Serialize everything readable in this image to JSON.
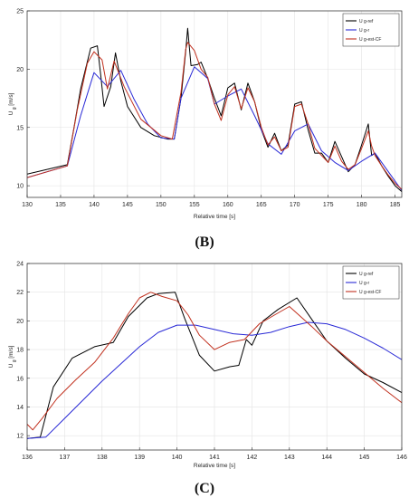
{
  "chart_data": [
    {
      "type": "line",
      "panel_label": "(B)",
      "xlabel": "Relative time [s]",
      "ylabel": "U",
      "ylabel_sub": "g",
      "ylabel_unit": "[m/s]",
      "xlim": [
        130,
        186
      ],
      "ylim": [
        9,
        25
      ],
      "xticks": [
        "130",
        "135",
        "140",
        "145",
        "150",
        "155",
        "160",
        "165",
        "170",
        "175",
        "180",
        "185"
      ],
      "yticks": [
        "10",
        "15",
        "20",
        "25"
      ],
      "grid": true,
      "legend_position": "top-right",
      "legend": [
        "U g-ref",
        "U g-r",
        "U g-est-CF"
      ],
      "series": [
        {
          "name": "U g-ref",
          "color": "#000000",
          "x": [
            130,
            136,
            137,
            138,
            139.5,
            140.5,
            141,
            141.5,
            142.5,
            143.2,
            144,
            145,
            147,
            149,
            151,
            152,
            153,
            153.7,
            154,
            154.5,
            155.5,
            156,
            157,
            158,
            159,
            160,
            161,
            162,
            163,
            164,
            165,
            166,
            167,
            168,
            169,
            170,
            171,
            172,
            173,
            174,
            175,
            176,
            177,
            178,
            179,
            180,
            181,
            181.5,
            182,
            183,
            184,
            185,
            186
          ],
          "y": [
            11,
            11.8,
            15,
            18.3,
            21.8,
            22,
            19.5,
            16.8,
            18.5,
            21.4,
            19,
            16.8,
            15,
            14.3,
            14,
            14,
            17.5,
            21.5,
            23.5,
            20.3,
            20.4,
            20.6,
            19.2,
            17.5,
            16,
            18.4,
            18.8,
            16.5,
            18.8,
            17.2,
            14.8,
            13.3,
            14.5,
            13,
            13.5,
            17,
            17.2,
            14.8,
            12.8,
            12.8,
            12,
            13.8,
            12.5,
            11.2,
            11.8,
            13.5,
            15.3,
            12.6,
            12.8,
            11.7,
            10.8,
            10,
            9.5
          ]
        },
        {
          "name": "U g-r",
          "color": "#2929d6",
          "x": [
            130,
            136,
            138,
            140,
            142,
            144,
            146,
            148,
            150,
            152,
            153,
            155,
            157,
            158,
            160,
            162,
            164,
            166,
            168,
            170,
            172,
            174,
            176,
            178,
            180,
            182,
            184,
            186
          ],
          "y": [
            10.7,
            11.7,
            16,
            19.7,
            18.5,
            19.9,
            17.4,
            15.3,
            14.1,
            14,
            17.5,
            20.2,
            19.2,
            17,
            17.7,
            18.3,
            16,
            13.6,
            12.7,
            14.7,
            15.3,
            13,
            12,
            11.3,
            12.1,
            12.8,
            11.2,
            9.6
          ]
        },
        {
          "name": "U g-est-CF",
          "color": "#c1301e",
          "x": [
            130,
            136,
            137.5,
            139,
            140,
            141.2,
            142,
            143,
            144.5,
            147,
            150,
            151.7,
            153,
            153.7,
            154,
            155,
            156,
            157,
            158,
            159,
            160,
            161,
            162,
            163,
            164,
            165,
            166,
            167,
            168,
            169,
            170,
            171,
            172,
            173,
            174,
            175,
            176,
            177,
            178,
            179,
            180,
            181,
            181.5,
            182,
            183,
            184,
            185,
            186
          ],
          "y": [
            10.7,
            11.7,
            16.5,
            20.5,
            21.5,
            20.8,
            18.3,
            20.7,
            18.5,
            15.7,
            14.3,
            14,
            18,
            21.7,
            22.3,
            21.6,
            20,
            19.3,
            17,
            15.6,
            17.8,
            18.5,
            16.6,
            18.4,
            17.2,
            15,
            13.5,
            14.2,
            13,
            13.3,
            16.8,
            17,
            15.3,
            13.2,
            12.6,
            12,
            13.4,
            12.1,
            11.4,
            11.8,
            13.2,
            14.7,
            13.4,
            12.6,
            11.7,
            10.9,
            10.2,
            9.7
          ]
        }
      ]
    },
    {
      "type": "line",
      "panel_label": "(C)",
      "xlabel": "Relative time [s]",
      "ylabel": "U",
      "ylabel_sub": "g",
      "ylabel_unit": "[m/s]",
      "xlim": [
        136,
        146
      ],
      "ylim": [
        11,
        24
      ],
      "xticks": [
        "136",
        "137",
        "138",
        "139",
        "140",
        "141",
        "142",
        "143",
        "144",
        "145",
        "146"
      ],
      "yticks": [
        "12",
        "14",
        "16",
        "18",
        "20",
        "22",
        "24"
      ],
      "grid": true,
      "legend_position": "top-right",
      "legend": [
        "U g-ref",
        "U g-r",
        "U g-est-CF"
      ],
      "series": [
        {
          "name": "U g-ref",
          "color": "#000000",
          "x": [
            136,
            136.35,
            136.7,
            137.2,
            137.8,
            138.3,
            138.7,
            139.2,
            139.5,
            139.95,
            140.2,
            140.6,
            141,
            141.4,
            141.65,
            141.85,
            142,
            142.3,
            142.7,
            143.2,
            143.6,
            144,
            144.5,
            145,
            145.5,
            146
          ],
          "y": [
            11.8,
            11.9,
            15.4,
            17.4,
            18.2,
            18.5,
            20.3,
            21.6,
            21.9,
            22,
            20.2,
            17.6,
            16.5,
            16.8,
            16.9,
            18.7,
            18.3,
            20,
            20.8,
            21.6,
            20.1,
            18.6,
            17.4,
            16.3,
            15.7,
            15
          ]
        },
        {
          "name": "U g-r",
          "color": "#2929d6",
          "x": [
            136,
            136.5,
            137,
            137.5,
            138,
            138.5,
            139,
            139.5,
            140,
            140.5,
            141,
            141.5,
            142,
            142.5,
            143,
            143.5,
            144,
            144.5,
            145,
            145.5,
            146
          ],
          "y": [
            11.8,
            11.9,
            13.2,
            14.5,
            15.8,
            17,
            18.2,
            19.2,
            19.7,
            19.7,
            19.4,
            19.1,
            19,
            19.2,
            19.6,
            19.9,
            19.8,
            19.4,
            18.8,
            18.1,
            17.3
          ]
        },
        {
          "name": "U g-est-CF",
          "color": "#c1301e",
          "x": [
            136,
            136.15,
            136.4,
            136.8,
            137.3,
            137.8,
            138.3,
            138.7,
            139,
            139.3,
            139.6,
            140,
            140.3,
            140.6,
            141,
            141.4,
            141.8,
            142.2,
            142.6,
            143,
            143.3,
            143.6,
            144,
            144.5,
            145,
            145.5,
            146
          ],
          "y": [
            12.8,
            12.4,
            13.2,
            14.6,
            15.9,
            17.1,
            18.8,
            20.5,
            21.6,
            22,
            21.7,
            21.4,
            20.4,
            19,
            18,
            18.5,
            18.7,
            19.8,
            20.4,
            21,
            20.3,
            19.6,
            18.6,
            17.5,
            16.4,
            15.3,
            14.3
          ]
        }
      ]
    }
  ]
}
